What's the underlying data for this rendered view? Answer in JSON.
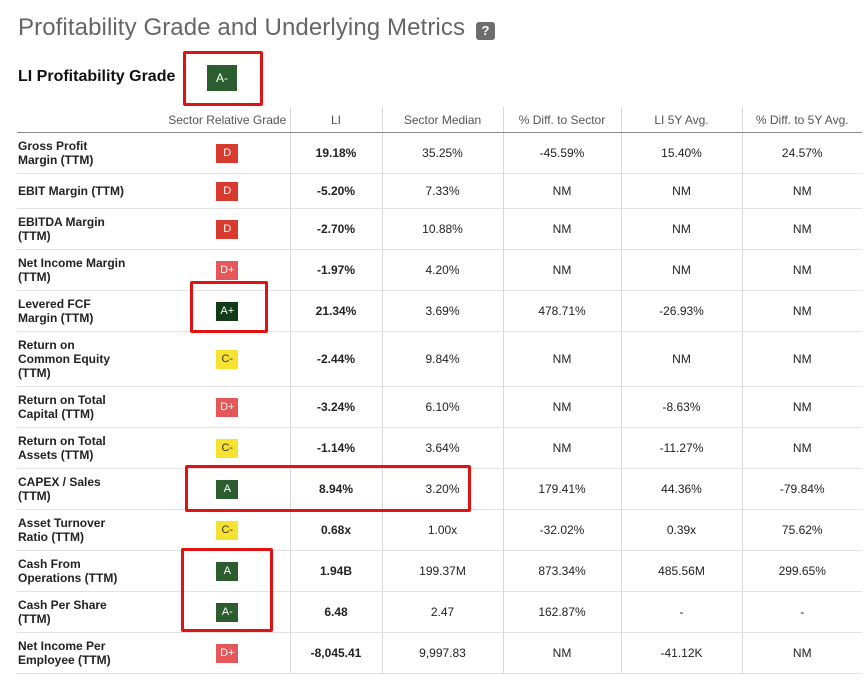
{
  "header": {
    "title": "Profitability Grade and Underlying Metrics",
    "help_icon": "?",
    "grade_label": "LI Profitability Grade",
    "grade_value": "A-"
  },
  "table": {
    "columns": [
      "",
      "Sector Relative Grade",
      "LI",
      "Sector Median",
      "% Diff. to Sector",
      "LI 5Y Avg.",
      "% Diff. to 5Y Avg."
    ],
    "rows": [
      {
        "metric": [
          "Gross Profit",
          "Margin (TTM)"
        ],
        "grade": "D",
        "li": "19.18%",
        "sector_median": "35.25%",
        "diff_sector": "-45.59%",
        "avg5y": "15.40%",
        "diff_5y": "24.57%"
      },
      {
        "metric": [
          "EBIT Margin (TTM)"
        ],
        "grade": "D",
        "li": "-5.20%",
        "sector_median": "7.33%",
        "diff_sector": "NM",
        "avg5y": "NM",
        "diff_5y": "NM"
      },
      {
        "metric": [
          "EBITDA Margin",
          "(TTM)"
        ],
        "grade": "D",
        "li": "-2.70%",
        "sector_median": "10.88%",
        "diff_sector": "NM",
        "avg5y": "NM",
        "diff_5y": "NM"
      },
      {
        "metric": [
          "Net Income Margin",
          "(TTM)"
        ],
        "grade": "D+",
        "li": "-1.97%",
        "sector_median": "4.20%",
        "diff_sector": "NM",
        "avg5y": "NM",
        "diff_5y": "NM"
      },
      {
        "metric": [
          "Levered FCF",
          "Margin (TTM)"
        ],
        "grade": "A+",
        "li": "21.34%",
        "sector_median": "3.69%",
        "diff_sector": "478.71%",
        "avg5y": "-26.93%",
        "diff_5y": "NM"
      },
      {
        "metric": [
          "Return on",
          "Common Equity",
          "(TTM)"
        ],
        "grade": "C-",
        "li": "-2.44%",
        "sector_median": "9.84%",
        "diff_sector": "NM",
        "avg5y": "NM",
        "diff_5y": "NM"
      },
      {
        "metric": [
          "Return on Total",
          "Capital (TTM)"
        ],
        "grade": "D+",
        "li": "-3.24%",
        "sector_median": "6.10%",
        "diff_sector": "NM",
        "avg5y": "-8.63%",
        "diff_5y": "NM"
      },
      {
        "metric": [
          "Return on Total",
          "Assets (TTM)"
        ],
        "grade": "C-",
        "li": "-1.14%",
        "sector_median": "3.64%",
        "diff_sector": "NM",
        "avg5y": "-11.27%",
        "diff_5y": "NM"
      },
      {
        "metric": [
          "CAPEX / Sales",
          "(TTM)"
        ],
        "grade": "A",
        "li": "8.94%",
        "sector_median": "3.20%",
        "diff_sector": "179.41%",
        "avg5y": "44.36%",
        "diff_5y": "-79.84%"
      },
      {
        "metric": [
          "Asset Turnover",
          "Ratio (TTM)"
        ],
        "grade": "C-",
        "li": "0.68x",
        "sector_median": "1.00x",
        "diff_sector": "-32.02%",
        "avg5y": "0.39x",
        "diff_5y": "75.62%"
      },
      {
        "metric": [
          "Cash From",
          "Operations (TTM)"
        ],
        "grade": "A",
        "li": "1.94B",
        "sector_median": "199.37M",
        "diff_sector": "873.34%",
        "avg5y": "485.56M",
        "diff_5y": "299.65%"
      },
      {
        "metric": [
          "Cash Per Share",
          "(TTM)"
        ],
        "grade": "A-",
        "li": "6.48",
        "sector_median": "2.47",
        "diff_sector": "162.87%",
        "avg5y": "-",
        "diff_5y": "-"
      },
      {
        "metric": [
          "Net Income Per",
          "Employee (TTM)"
        ],
        "grade": "D+",
        "li": "-8,045.41",
        "sector_median": "9,997.83",
        "diff_sector": "NM",
        "avg5y": "-41.12K",
        "diff_5y": "NM"
      }
    ]
  },
  "grade_colors": {
    "D": "#d83a2e",
    "D+": "#e5585a",
    "C-": "#f7e131",
    "A": "#2b5d2e",
    "A-": "#2b5d2e",
    "A+": "#123c17"
  },
  "highlight_color": "#e01212"
}
